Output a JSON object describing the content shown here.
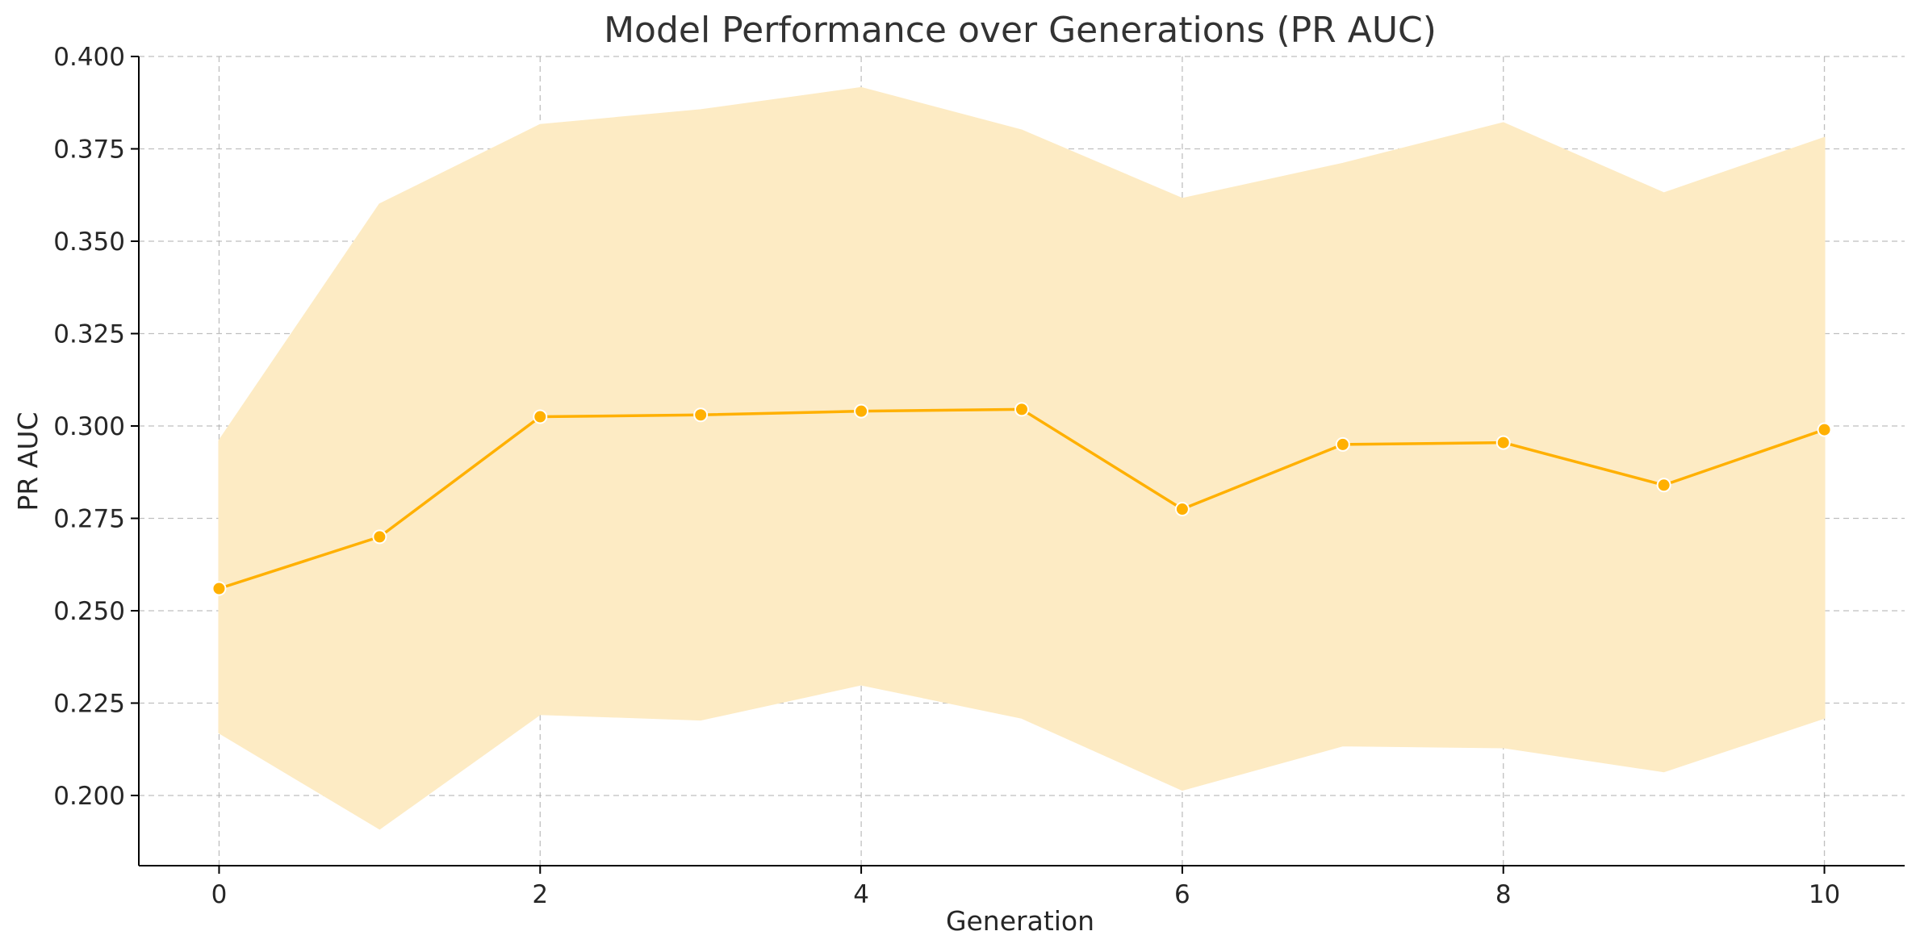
{
  "chart_data": {
    "type": "line",
    "title": "Model Performance over Generations (PR AUC)",
    "xlabel": "Generation",
    "ylabel": "PR AUC",
    "xlim": [
      -0.5,
      10.5
    ],
    "ylim": [
      0.181,
      0.4
    ],
    "xticks": [
      0,
      2,
      4,
      6,
      8,
      10
    ],
    "yticks": [
      0.2,
      0.225,
      0.25,
      0.275,
      0.3,
      0.325,
      0.35,
      0.375,
      0.4
    ],
    "ytick_labels": [
      "0.200",
      "0.225",
      "0.250",
      "0.275",
      "0.300",
      "0.325",
      "0.350",
      "0.375",
      "0.400"
    ],
    "grid": true,
    "x": [
      0,
      1,
      2,
      3,
      4,
      5,
      6,
      7,
      8,
      9,
      10
    ],
    "series": [
      {
        "values": [
          0.256,
          0.27,
          0.3025,
          0.303,
          0.304,
          0.3045,
          0.2775,
          0.295,
          0.2955,
          0.284,
          0.299
        ],
        "band_upper": [
          0.296,
          0.36,
          0.3815,
          0.3855,
          0.3915,
          0.38,
          0.3615,
          0.371,
          0.382,
          0.363,
          0.378
        ],
        "band_lower": [
          0.217,
          0.191,
          0.222,
          0.2205,
          0.23,
          0.221,
          0.2015,
          0.2135,
          0.213,
          0.2065,
          0.221
        ],
        "color": "#FFB000",
        "band_color": "#FDEBC4"
      }
    ]
  }
}
